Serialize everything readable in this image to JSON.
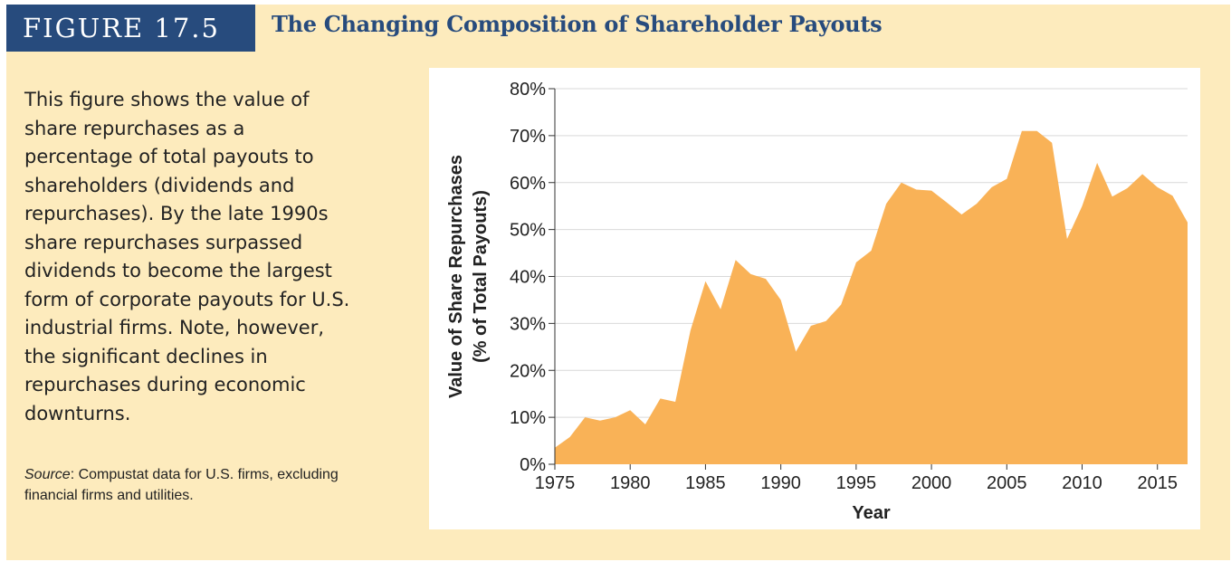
{
  "figure": {
    "label": "FIGURE 17.5",
    "title": "The Changing Composition of Shareholder Payouts"
  },
  "description": "This figure shows the value of share repurchases as a percentage of total payouts to shareholders (dividends and repurchases). By the late 1990s share repurchases surpassed dividends to become the largest form of corporate payouts for U.S. industrial firms. Note, however, the significant declines in repurchases during economic downturns.",
  "source": {
    "label": "Source",
    "text": ": Compustat data for U.S. firms, excluding financial firms and utilities."
  },
  "colors": {
    "panel": "#fdebbd",
    "label_bg": "#274b7d",
    "area": "#f9b257",
    "grid": "#d9d9d9"
  },
  "chart_data": {
    "type": "area",
    "title": "",
    "xlabel": "Year",
    "ylabel_line1": "Value of Share Repurchases",
    "ylabel_line2": "(% of Total Payouts)",
    "xlim": [
      1975,
      2017
    ],
    "ylim": [
      0,
      80
    ],
    "x_ticks": [
      1975,
      1980,
      1985,
      1990,
      1995,
      2000,
      2005,
      2010,
      2015
    ],
    "x_tick_labels": [
      "1975",
      "1980",
      "1985",
      "1990",
      "1995",
      "2000",
      "2005",
      "2010",
      "2015"
    ],
    "y_ticks": [
      0,
      10,
      20,
      30,
      40,
      50,
      60,
      70,
      80
    ],
    "y_tick_labels": [
      "0%",
      "10%",
      "20%",
      "30%",
      "40%",
      "50%",
      "60%",
      "70%",
      "80%"
    ],
    "grid": true,
    "legend": "none",
    "series": [
      {
        "x": [
          1975,
          1976,
          1977,
          1978,
          1979,
          1980,
          1981,
          1982,
          1983,
          1984,
          1985,
          1986,
          1987,
          1988,
          1989,
          1990,
          1991,
          1992,
          1993,
          1994,
          1995,
          1996,
          1997,
          1998,
          1999,
          2000,
          2001,
          2002,
          2003,
          2004,
          2005,
          2006,
          2007,
          2008,
          2009,
          2010,
          2011,
          2012,
          2013,
          2014,
          2015,
          2016,
          2017
        ],
        "values": [
          3.5,
          5.8,
          10.0,
          9.3,
          10.0,
          11.5,
          8.5,
          14.0,
          13.3,
          28.5,
          39.0,
          33.0,
          43.5,
          40.5,
          39.5,
          35.0,
          24.0,
          29.5,
          30.5,
          34.0,
          43.0,
          45.5,
          55.5,
          60.0,
          58.5,
          58.3,
          55.8,
          53.2,
          55.5,
          59.0,
          60.8,
          71.0,
          71.0,
          68.5,
          48.0,
          55.0,
          64.2,
          57.0,
          58.8,
          61.8,
          59.0,
          57.2,
          51.5
        ]
      }
    ]
  }
}
